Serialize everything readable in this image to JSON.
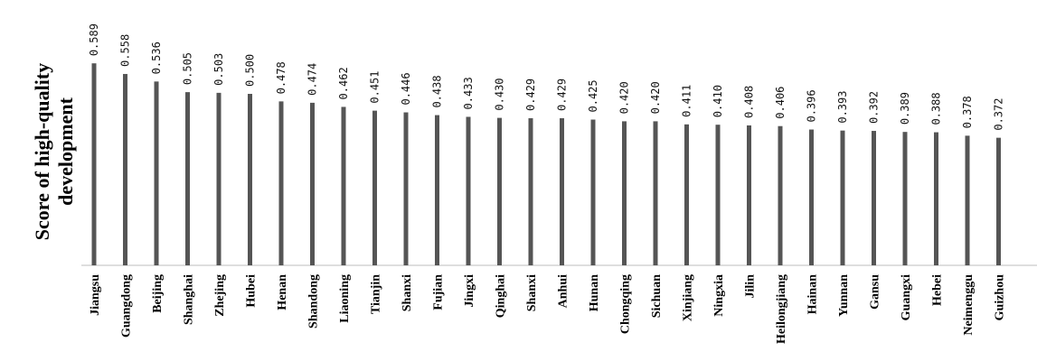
{
  "chart_data": {
    "type": "bar",
    "ylabel": "Score of high-quality development",
    "categories": [
      "Jiangsu",
      "Guangdong",
      "Beijing",
      "Shanghai",
      "Zhejing",
      "Hubei",
      "Henan",
      "Shandong",
      "Liaoning",
      "Tianjin",
      "Shanxi",
      "Fujian",
      "Jingxi",
      "Qinghai",
      "Shanxi",
      "Anhui",
      "Hunan",
      "Chongqing",
      "Sichuan",
      "Xinjiang",
      "Ningxia",
      "Jilin",
      "Heilongjiang",
      "Hainan",
      "Yunnan",
      "Gansu",
      "Guangxi",
      "Hebei",
      "Neimenggu",
      "Guizhou"
    ],
    "values": [
      0.589,
      0.558,
      0.536,
      0.505,
      0.503,
      0.5,
      0.478,
      0.474,
      0.462,
      0.451,
      0.446,
      0.438,
      0.433,
      0.43,
      0.429,
      0.429,
      0.425,
      0.42,
      0.42,
      0.411,
      0.41,
      0.408,
      0.406,
      0.396,
      0.393,
      0.392,
      0.389,
      0.388,
      0.378,
      0.372
    ],
    "value_labels": [
      "0.589",
      "0.558",
      "0.536",
      "0.505",
      "0.503",
      "0.500",
      "0.478",
      "0.474",
      "0.462",
      "0.451",
      "0.446",
      "0.438",
      "0.433",
      "0.430",
      "0.429",
      "0.429",
      "0.425",
      "0.420",
      "0.420",
      "0.411",
      "0.410",
      "0.408",
      "0.406",
      "0.396",
      "0.393",
      "0.392",
      "0.389",
      "0.388",
      "0.378",
      "0.372"
    ],
    "grid": false,
    "bar_color": "#555555"
  }
}
